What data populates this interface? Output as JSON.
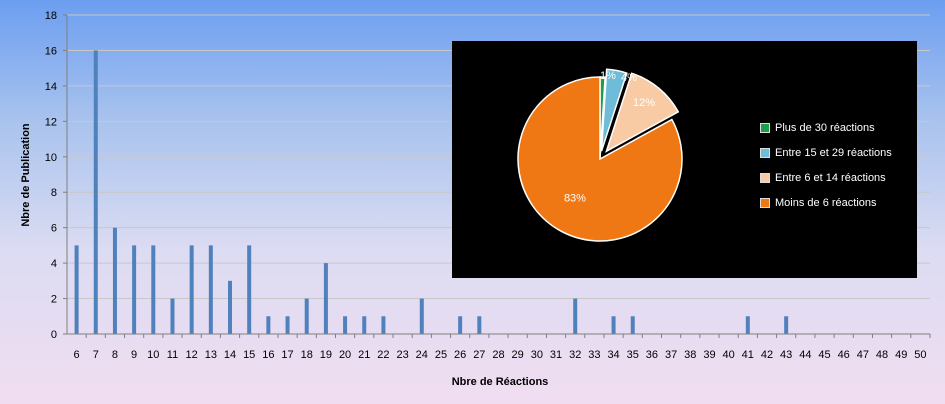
{
  "chart_data": [
    {
      "type": "bar",
      "xlabel": "Nbre de Réactions",
      "ylabel": "Nbre de Publication",
      "ylim": [
        0,
        18
      ],
      "yticks": [
        0,
        2,
        4,
        6,
        8,
        10,
        12,
        14,
        16,
        18
      ],
      "grid": true,
      "bar_color": "#4f81bd",
      "categories": [
        "6",
        "7",
        "8",
        "9",
        "10",
        "11",
        "12",
        "13",
        "14",
        "15",
        "16",
        "17",
        "18",
        "19",
        "20",
        "21",
        "22",
        "23",
        "24",
        "25",
        "26",
        "27",
        "28",
        "29",
        "30",
        "31",
        "32",
        "33",
        "34",
        "35",
        "36",
        "37",
        "38",
        "39",
        "40",
        "41",
        "42",
        "43",
        "44",
        "45",
        "46",
        "47",
        "48",
        "49",
        "50"
      ],
      "values": [
        5,
        16,
        6,
        5,
        5,
        2,
        5,
        5,
        3,
        5,
        1,
        1,
        2,
        4,
        1,
        1,
        1,
        0,
        2,
        0,
        1,
        1,
        0,
        0,
        0,
        0,
        2,
        0,
        1,
        1,
        0,
        0,
        0,
        0,
        0,
        1,
        0,
        1,
        0,
        0,
        0,
        0,
        0,
        0,
        0
      ]
    },
    {
      "type": "pie",
      "legend_position": "right",
      "slices": [
        {
          "label": "Plus de 30 réactions",
          "value": 1,
          "display": "1%",
          "color": "#1e9e4a"
        },
        {
          "label": "Entre 15 et 29 réactions",
          "value": 4,
          "display": "4%",
          "color": "#6fbcd8"
        },
        {
          "label": "Entre 6 et 14 réactions",
          "value": 12,
          "display": "12%",
          "color": "#f8cba4"
        },
        {
          "label": "Moins de 6 réactions",
          "value": 83,
          "display": "83%",
          "color": "#f07814"
        }
      ]
    }
  ]
}
